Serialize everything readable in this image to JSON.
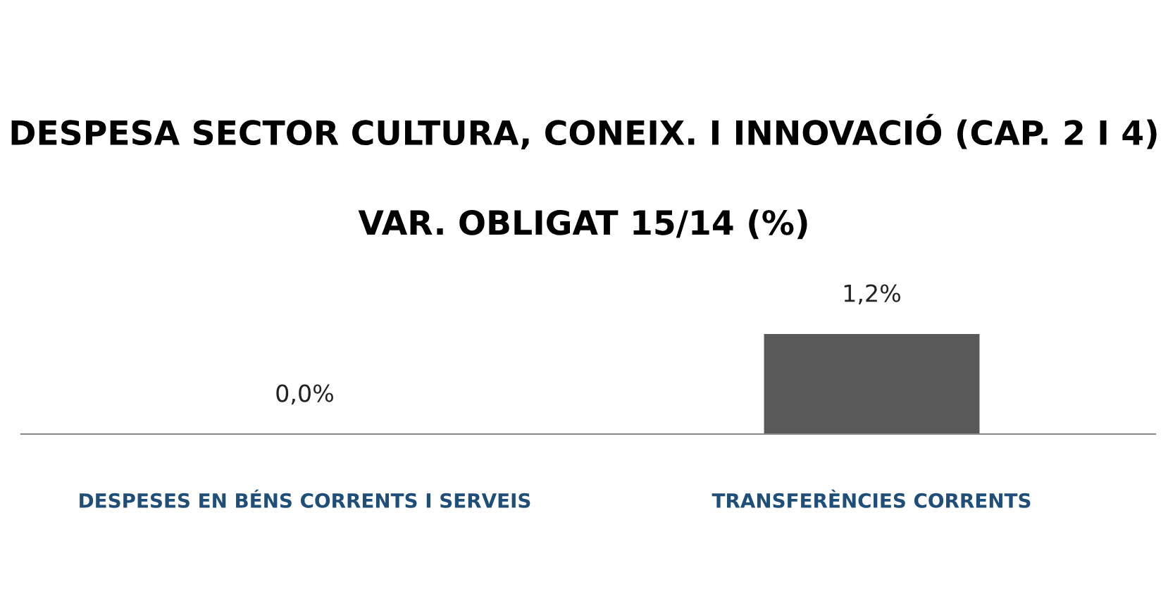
{
  "chart_data": {
    "type": "bar",
    "title": "DESPESA SECTOR CULTURA, CONEIX. I INNOVACIÓ (CAP. 2 I 4)",
    "subtitle": "VAR. OBLIGAT 15/14 (%)",
    "categories": [
      "DESPESES EN BÉNS CORRENTS I SERVEIS",
      "TRANSFERÈNCIES CORRENTS"
    ],
    "values": [
      0.0,
      1.2
    ],
    "value_labels": [
      "0,0%",
      "1,2%"
    ],
    "color": "#595959",
    "grid": false,
    "legend": false
  }
}
